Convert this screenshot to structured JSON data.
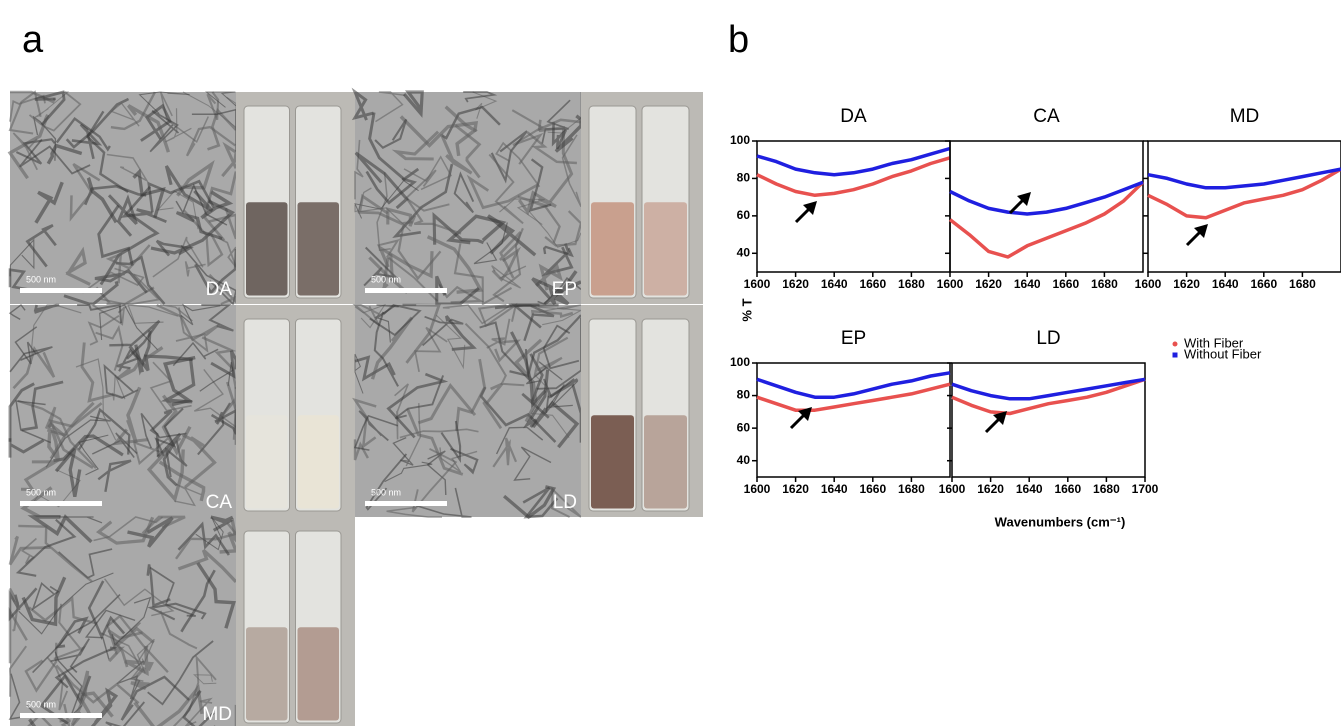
{
  "panel_a": {
    "label": "a",
    "samples": [
      {
        "label": "DA",
        "scale_bar": "500 nm"
      },
      {
        "label": "EP",
        "scale_bar": "500 nm"
      },
      {
        "label": "CA",
        "scale_bar": "500 nm"
      },
      {
        "label": "LD",
        "scale_bar": "500 nm"
      },
      {
        "label": "MD",
        "scale_bar": "500 nm"
      }
    ]
  },
  "panel_b": {
    "label": "b",
    "y_label": "% T",
    "x_label": "Wavenumbers (cm⁻¹)"
  },
  "chart_data": [
    {
      "type": "line",
      "title": "DA",
      "x": [
        1600,
        1610,
        1620,
        1630,
        1640,
        1650,
        1660,
        1670,
        1680,
        1690,
        1700
      ],
      "xlim": [
        1600,
        1700
      ],
      "ylim": [
        30,
        100
      ],
      "xticks": [
        1600,
        1620,
        1640,
        1660,
        1680
      ],
      "yticks": [
        40,
        60,
        80,
        100
      ],
      "series": [
        {
          "name": "With Fiber",
          "color": "#e8514f",
          "values": [
            82,
            77,
            73,
            71,
            72,
            74,
            77,
            81,
            84,
            88,
            91
          ]
        },
        {
          "name": "Without Fiber",
          "color": "#1f1fe0",
          "values": [
            92,
            89,
            85,
            83,
            82,
            83,
            85,
            88,
            90,
            93,
            96
          ]
        }
      ]
    },
    {
      "type": "line",
      "title": "CA",
      "x": [
        1600,
        1610,
        1620,
        1630,
        1640,
        1650,
        1660,
        1670,
        1680,
        1690,
        1700
      ],
      "xlim": [
        1600,
        1700
      ],
      "ylim": [
        30,
        100
      ],
      "xticks": [
        1600,
        1620,
        1640,
        1660,
        1680
      ],
      "yticks": [
        40,
        60,
        80,
        100
      ],
      "series": [
        {
          "name": "With Fiber",
          "color": "#e8514f",
          "values": [
            58,
            50,
            41,
            38,
            44,
            48,
            52,
            56,
            61,
            68,
            78
          ]
        },
        {
          "name": "Without Fiber",
          "color": "#1f1fe0",
          "values": [
            73,
            68,
            64,
            62,
            61,
            62,
            64,
            67,
            70,
            74,
            78
          ]
        }
      ]
    },
    {
      "type": "line",
      "title": "MD",
      "x": [
        1600,
        1610,
        1620,
        1630,
        1640,
        1650,
        1660,
        1670,
        1680,
        1690,
        1700
      ],
      "xlim": [
        1600,
        1700
      ],
      "ylim": [
        30,
        100
      ],
      "xticks": [
        1600,
        1620,
        1640,
        1660,
        1680
      ],
      "yticks": [
        40,
        60,
        80,
        100
      ],
      "series": [
        {
          "name": "With Fiber",
          "color": "#e8514f",
          "values": [
            71,
            66,
            60,
            59,
            63,
            67,
            69,
            71,
            74,
            79,
            85
          ]
        },
        {
          "name": "Without Fiber",
          "color": "#1f1fe0",
          "values": [
            82,
            80,
            77,
            75,
            75,
            76,
            77,
            79,
            81,
            83,
            85
          ]
        }
      ]
    },
    {
      "type": "line",
      "title": "EP",
      "x": [
        1600,
        1610,
        1620,
        1630,
        1640,
        1650,
        1660,
        1670,
        1680,
        1690,
        1700
      ],
      "xlim": [
        1600,
        1700
      ],
      "ylim": [
        30,
        100
      ],
      "xticks": [
        1600,
        1620,
        1640,
        1660,
        1680
      ],
      "yticks": [
        40,
        60,
        80,
        100
      ],
      "series": [
        {
          "name": "With Fiber",
          "color": "#e8514f",
          "values": [
            79,
            75,
            71,
            71,
            73,
            75,
            77,
            79,
            81,
            84,
            87
          ]
        },
        {
          "name": "Without Fiber",
          "color": "#1f1fe0",
          "values": [
            90,
            86,
            82,
            79,
            79,
            81,
            84,
            87,
            89,
            92,
            94
          ]
        }
      ]
    },
    {
      "type": "line",
      "title": "LD",
      "x": [
        1600,
        1610,
        1620,
        1630,
        1640,
        1650,
        1660,
        1670,
        1680,
        1690,
        1700
      ],
      "xlim": [
        1600,
        1700
      ],
      "ylim": [
        30,
        100
      ],
      "xticks": [
        1600,
        1620,
        1640,
        1660,
        1680,
        1700
      ],
      "yticks": [
        40,
        60,
        80,
        100
      ],
      "series": [
        {
          "name": "With Fiber",
          "color": "#e8514f",
          "values": [
            79,
            74,
            70,
            69,
            72,
            75,
            77,
            79,
            82,
            86,
            90
          ]
        },
        {
          "name": "Without Fiber",
          "color": "#1f1fe0",
          "values": [
            87,
            83,
            80,
            78,
            78,
            80,
            82,
            84,
            86,
            88,
            90
          ]
        }
      ]
    }
  ]
}
